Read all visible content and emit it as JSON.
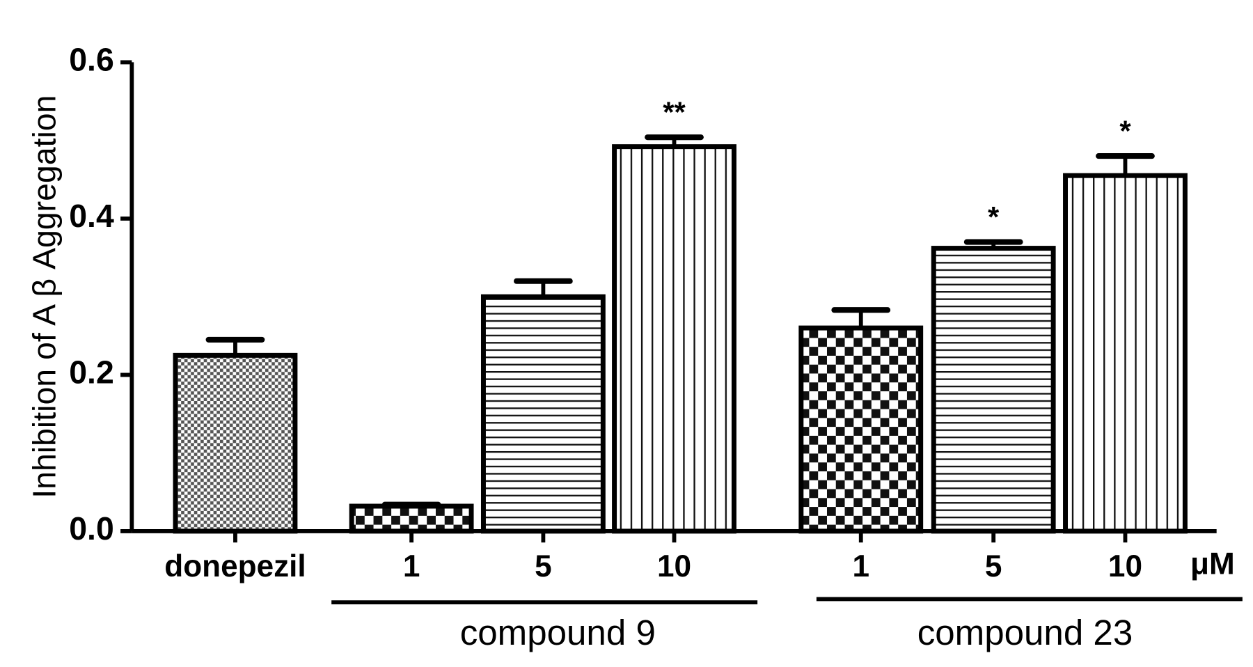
{
  "chart_data": {
    "type": "bar",
    "y_label": "Inhibition of A β Aggregation",
    "categories": [
      "donepezil",
      "1",
      "5",
      "10",
      "1",
      "5",
      "10"
    ],
    "unit_label": "μM",
    "groups": [
      {
        "label": "compound 9",
        "members": [
          1,
          2,
          3
        ]
      },
      {
        "label": "compound 23",
        "members": [
          4,
          5,
          6
        ]
      }
    ],
    "values": [
      0.225,
      0.032,
      0.3,
      0.492,
      0.26,
      0.362,
      0.455
    ],
    "errors": [
      0.02,
      0.002,
      0.02,
      0.012,
      0.023,
      0.008,
      0.025
    ],
    "significance": [
      null,
      null,
      null,
      "**",
      null,
      "*",
      "*"
    ],
    "patterns": [
      "fine-checker",
      "checker",
      "horizontal-lines",
      "vertical-lines",
      "checker",
      "horizontal-lines",
      "vertical-lines"
    ],
    "color": "#000000",
    "ylim": [
      0,
      0.6
    ],
    "yticks": [
      {
        "value": 0,
        "label": "0.0"
      },
      0.2,
      0.4,
      0.6
    ],
    "grid": false
  }
}
